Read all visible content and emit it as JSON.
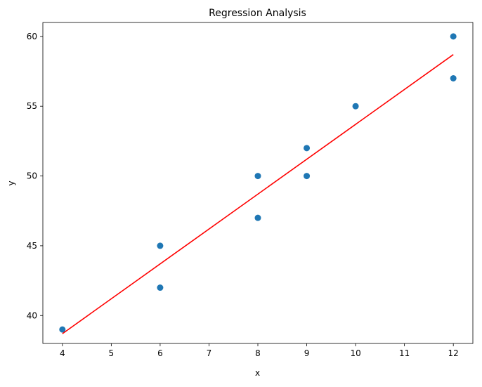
{
  "chart_data": {
    "type": "scatter",
    "title": "Regression Analysis",
    "xlabel": "x",
    "ylabel": "y",
    "xlim": [
      3.6,
      12.4
    ],
    "ylim": [
      38.0,
      61.0
    ],
    "xticks": [
      4,
      5,
      6,
      7,
      8,
      9,
      10,
      11,
      12
    ],
    "yticks": [
      40,
      45,
      50,
      55,
      60
    ],
    "grid": false,
    "legend": "none",
    "series": [
      {
        "type": "scatter",
        "color": "#1f77b4",
        "points": [
          {
            "x": 4,
            "y": 39
          },
          {
            "x": 6,
            "y": 45
          },
          {
            "x": 6,
            "y": 42
          },
          {
            "x": 8,
            "y": 50
          },
          {
            "x": 8,
            "y": 47
          },
          {
            "x": 9,
            "y": 52
          },
          {
            "x": 9,
            "y": 50
          },
          {
            "x": 10,
            "y": 55
          },
          {
            "x": 12,
            "y": 60
          },
          {
            "x": 12,
            "y": 57
          }
        ]
      },
      {
        "type": "line",
        "color": "#ff0000",
        "points": [
          {
            "x": 4,
            "y": 38.7
          },
          {
            "x": 12,
            "y": 58.7
          }
        ]
      }
    ]
  }
}
